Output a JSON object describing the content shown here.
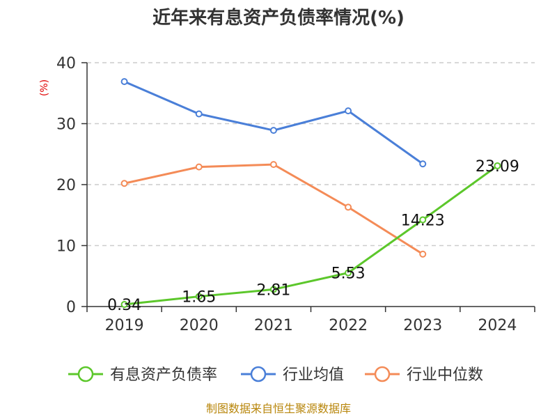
{
  "chart_data": {
    "type": "line",
    "title": "近年来有息资产负债率情况(%)",
    "ylabel": "(%)",
    "xlabel": "",
    "categories": [
      "2019",
      "2020",
      "2021",
      "2022",
      "2023",
      "2024"
    ],
    "ylim": [
      0,
      40
    ],
    "yticks": [
      0,
      10,
      20,
      30,
      40
    ],
    "grid": true,
    "legend_position": "bottom",
    "series": [
      {
        "name": "有息资产负债率",
        "color": "#5cc72b",
        "values": [
          0.34,
          1.65,
          2.81,
          5.53,
          14.23,
          23.09
        ],
        "labels": [
          "0.34",
          "1.65",
          "2.81",
          "5.53",
          "14.23",
          "23.09"
        ]
      },
      {
        "name": "行业均值",
        "color": "#4a7fd8",
        "values": [
          36.9,
          31.6,
          28.9,
          32.1,
          23.4,
          null
        ]
      },
      {
        "name": "行业中位数",
        "color": "#f48b57",
        "values": [
          20.2,
          22.9,
          23.3,
          16.3,
          8.6,
          null
        ]
      }
    ]
  },
  "footer": {
    "source": "制图数据来自恒生聚源数据库"
  }
}
